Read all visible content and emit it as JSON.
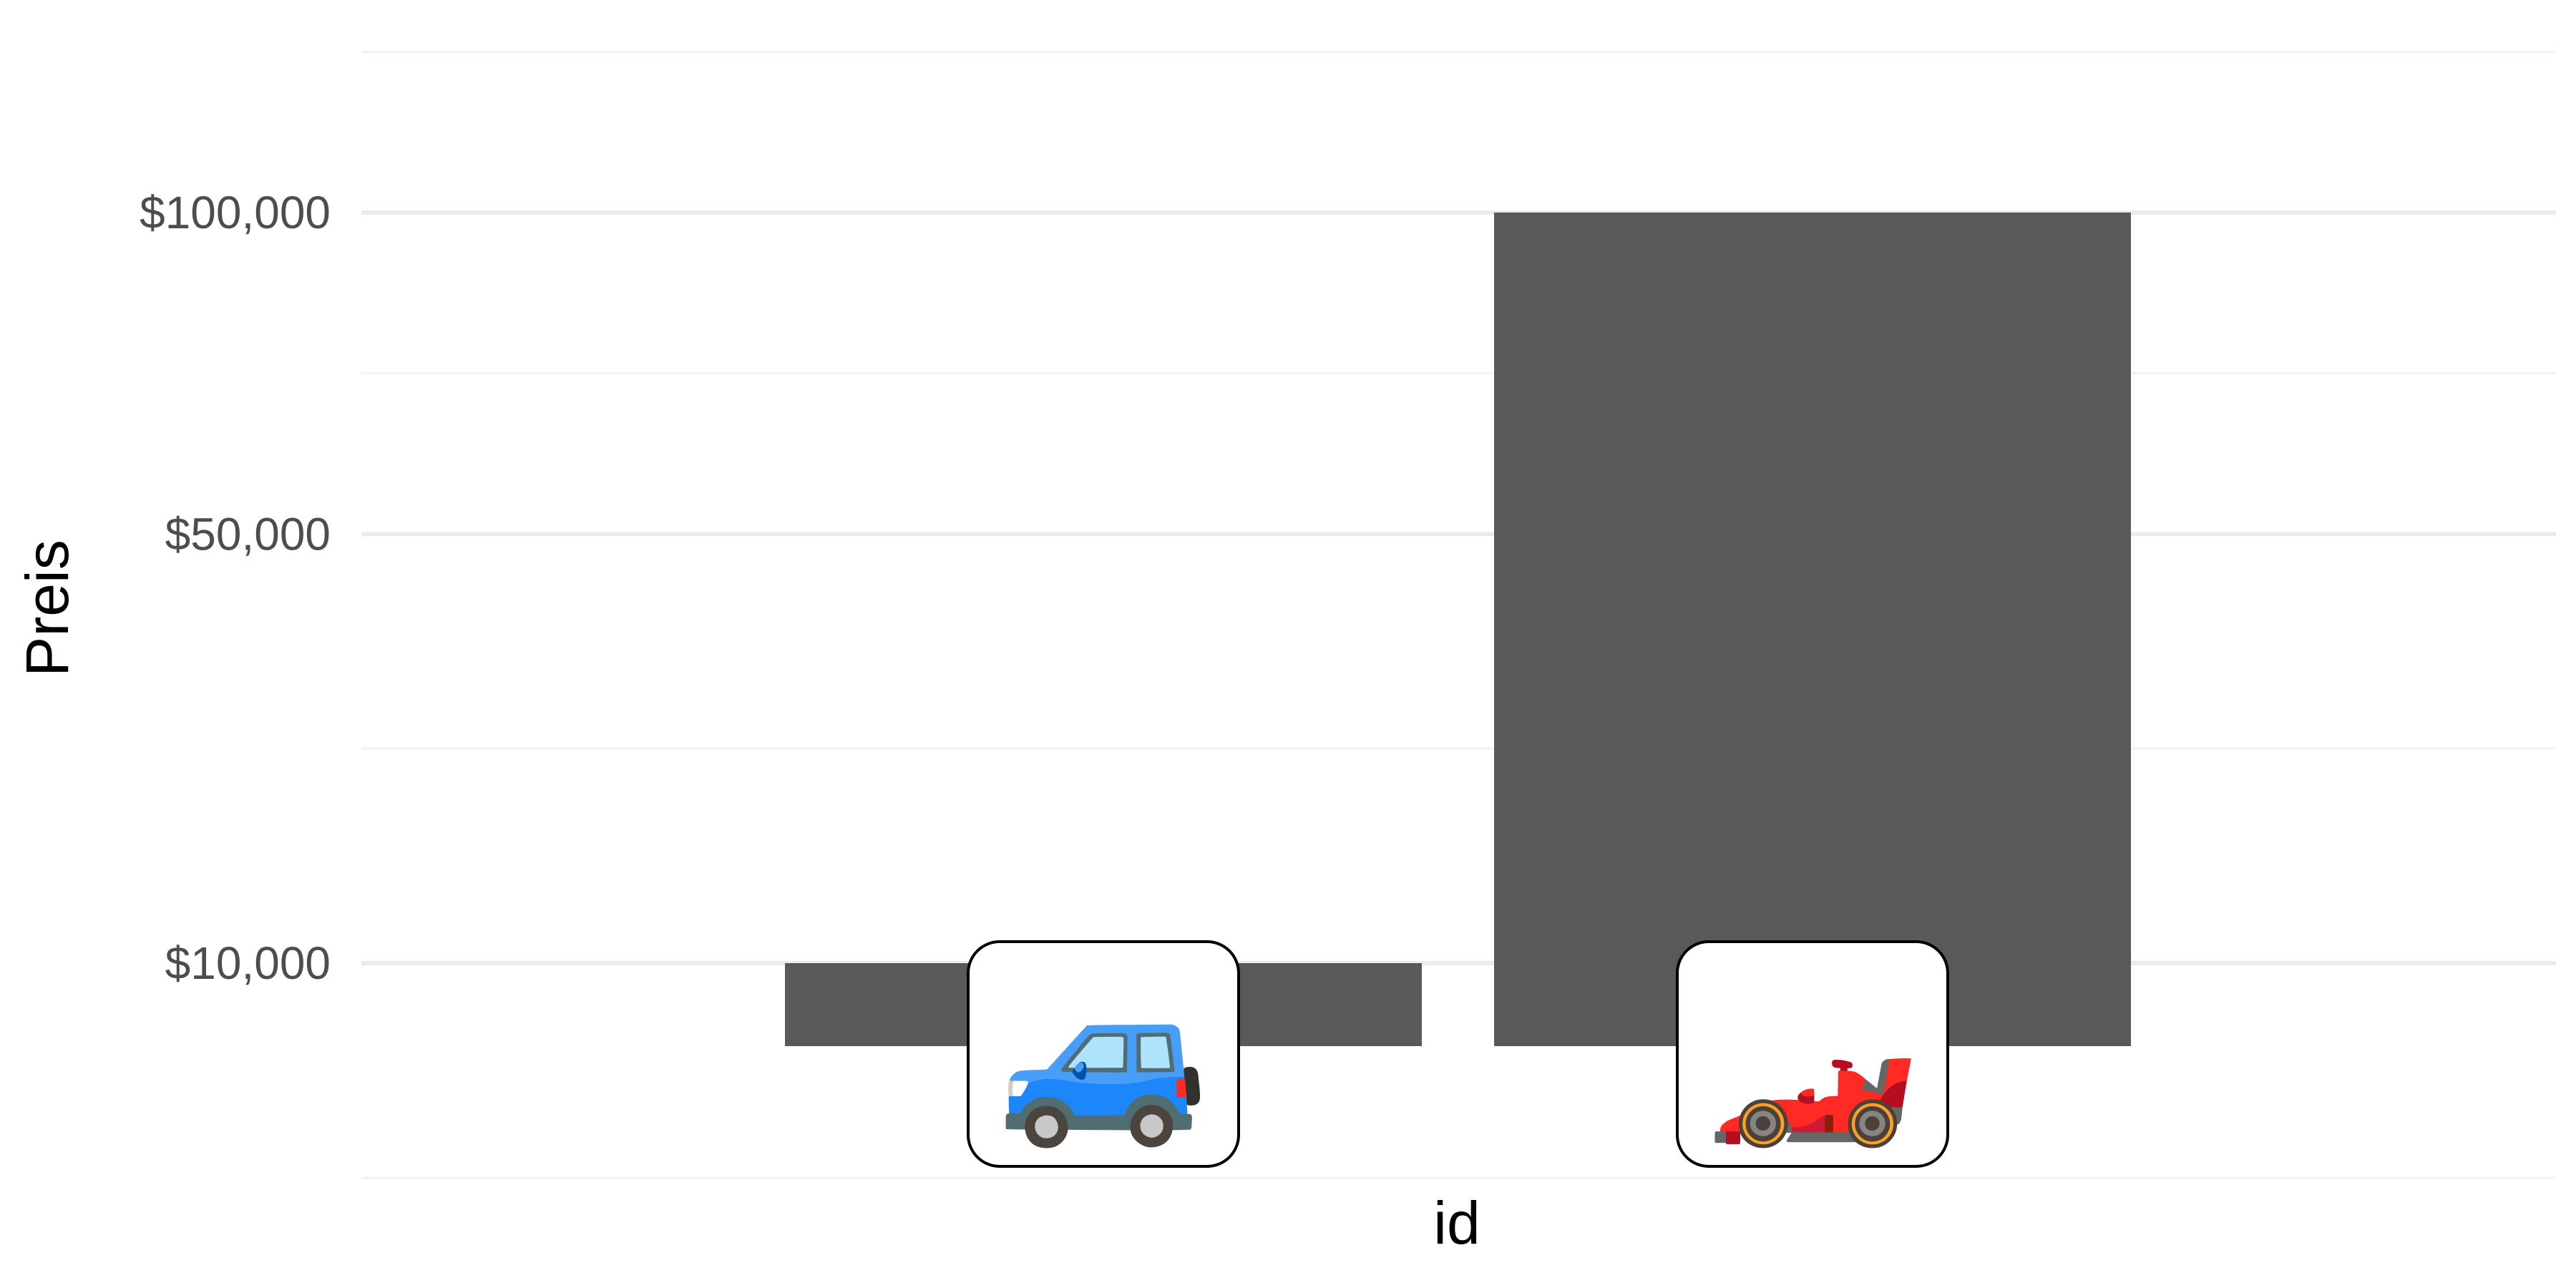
{
  "chart_data": {
    "type": "bar",
    "title": "",
    "xlabel": "id",
    "ylabel": "Preis",
    "categories": [
      "car",
      "racing-car"
    ],
    "category_icons": [
      "🚙",
      "🏎️"
    ],
    "values": [
      10000,
      100000
    ],
    "y_scale": "sqrt",
    "ylim": [
      0,
      120000
    ],
    "y_ticks": [
      {
        "value": 10000,
        "label": "$10,000"
      },
      {
        "value": 50000,
        "label": "$50,000"
      },
      {
        "value": 100000,
        "label": "$100,000"
      }
    ],
    "grid": true,
    "legend": "none",
    "colors": {
      "bar": "#595959",
      "grid_major": "#ebebeb",
      "grid_minor": "#f2f2f2",
      "icon_border": "#000000",
      "icon_fill": "#ffffff"
    }
  }
}
